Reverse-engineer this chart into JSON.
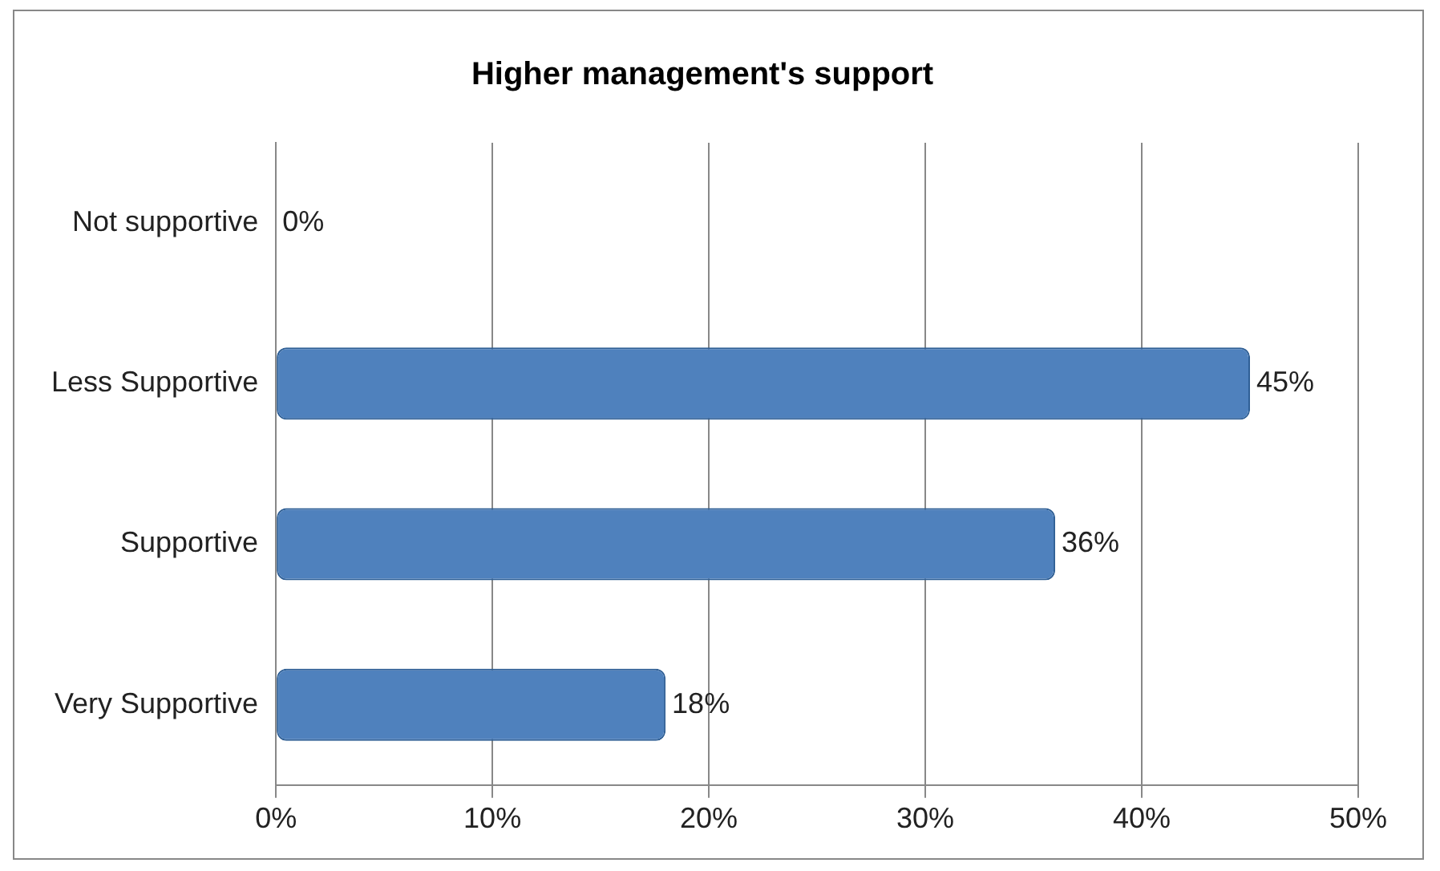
{
  "chart_data": {
    "type": "bar",
    "title": "Higher management's support",
    "orientation": "horizontal",
    "categories": [
      "Not supportive",
      "Less Supportive",
      "Supportive",
      "Very Supportive"
    ],
    "series": [
      {
        "color": "#4f81bd",
        "values": [
          0,
          45,
          36,
          18
        ],
        "value_labels": [
          "0%",
          "45%",
          "36%",
          "18%"
        ]
      }
    ],
    "xlim": [
      0,
      50
    ],
    "xticks": [
      {
        "value": 0,
        "label": "0%"
      },
      {
        "value": 10,
        "label": "10%"
      },
      {
        "value": 20,
        "label": "20%"
      },
      {
        "value": 30,
        "label": "30%"
      },
      {
        "value": 40,
        "label": "40%"
      },
      {
        "value": 50,
        "label": "50%"
      }
    ],
    "grid": "x",
    "legend": false
  }
}
